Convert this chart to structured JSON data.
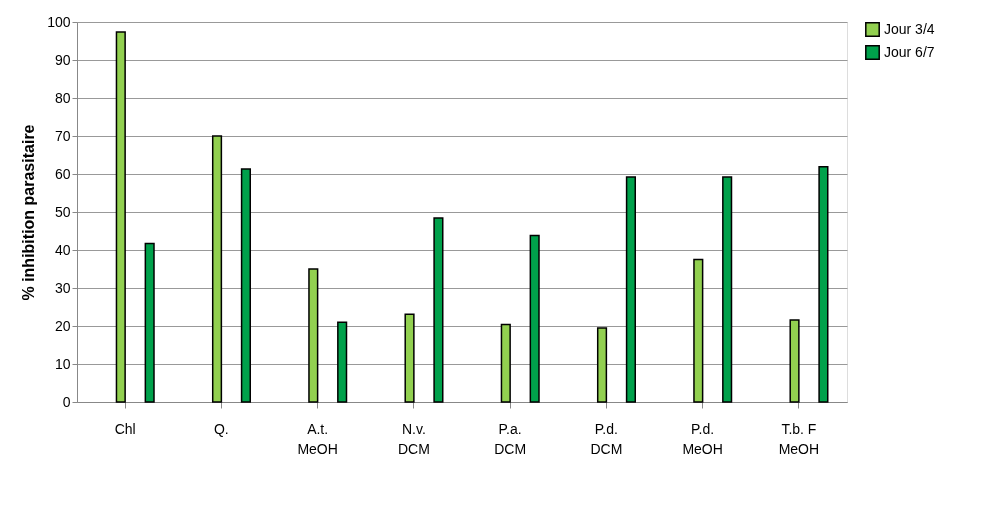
{
  "chart_data": {
    "type": "bar",
    "ylabel": "% inhibition parasitaire",
    "categories": [
      "Chl",
      "Q.",
      "A.t.\nMeOH",
      "N.v.\nDCM",
      "P.a.\nDCM",
      "P.d.\nDCM",
      "P.d.\nMeOH",
      "T.b. F\nMeOH"
    ],
    "series": [
      {
        "name": "Jour 3/4",
        "color": "#92d050",
        "values": [
          97.4,
          70.0,
          35.0,
          23.1,
          20.4,
          19.5,
          37.5,
          21.6
        ]
      },
      {
        "name": "Jour 6/7",
        "color": "#00a14b",
        "values": [
          41.7,
          61.3,
          21.0,
          48.4,
          43.8,
          59.2,
          59.2,
          61.9
        ]
      }
    ],
    "ylim": [
      0,
      100
    ],
    "yticks": [
      0,
      10,
      20,
      30,
      40,
      50,
      60,
      70,
      80,
      90,
      100
    ],
    "grid": "y",
    "legend": "right"
  }
}
